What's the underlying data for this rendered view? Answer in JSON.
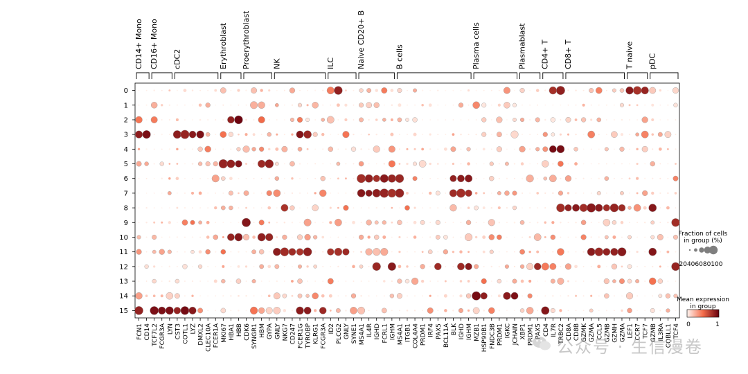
{
  "chart_data": {
    "type": "dotplot",
    "groups": [
      {
        "name": "CD14+ Mono",
        "genes": [
          "FCN1",
          "CD14"
        ]
      },
      {
        "name": "CD16+ Mono",
        "genes": [
          "TCF7L2",
          "FCGR3A",
          "LYN"
        ]
      },
      {
        "name": "cDC2",
        "genes": [
          "CST3",
          "COTL1",
          "LYZ",
          "DMXL2",
          "CLEC10A",
          "FCER1A"
        ]
      },
      {
        "name": "Erythroblast",
        "genes": [
          "MKI67",
          "HBA1",
          "HBB"
        ]
      },
      {
        "name": "Proerythroblast",
        "genes": [
          "CDK6",
          "SYNGR1",
          "HBM",
          "GYPA"
        ]
      },
      {
        "name": "NK",
        "genes": [
          "GNLY",
          "NKG7",
          "CD247",
          "FCER1G",
          "TYROBP",
          "KLRG1",
          "FCGR3A"
        ]
      },
      {
        "name": "ILC",
        "genes": [
          "ID2",
          "PLCG2",
          "GNLY",
          "SYNE1"
        ]
      },
      {
        "name": "Naive CD20+ B",
        "genes": [
          "MS4A1",
          "IL4R",
          "IGHD",
          "FCRL1",
          "IGHM"
        ]
      },
      {
        "name": "B cells",
        "genes": [
          "MS4A1",
          "ITGB1",
          "COL4A4",
          "PRDM1",
          "IRF4",
          "PAX5",
          "BCL11A",
          "BLK",
          "IGHD",
          "IGHM"
        ]
      },
      {
        "name": "Plasma cells",
        "genes": [
          "MZB1",
          "HSP90B1",
          "FNDC3B",
          "PRDM1",
          "IGKC",
          "JCHAIN"
        ]
      },
      {
        "name": "Plasmablast",
        "genes": [
          "XBP1",
          "PRDM1",
          "PAX5"
        ]
      },
      {
        "name": "CD4+ T",
        "genes": [
          "CD4",
          "IL7R",
          "TRBC2"
        ]
      },
      {
        "name": "CD8+ T",
        "genes": [
          "CD8A",
          "CD8B",
          "GZMK",
          "GZMA",
          "CCL5",
          "GZMB",
          "GZMH",
          "GZMA"
        ]
      },
      {
        "name": "T naive",
        "genes": [
          "LEF1",
          "CCR7",
          "TCF7"
        ]
      },
      {
        "name": "pDC",
        "genes": [
          "GZMB",
          "IL3RA",
          "COBLL1",
          "TCF4"
        ]
      }
    ],
    "rows": [
      "0",
      "1",
      "2",
      "3",
      "4",
      "5",
      "6",
      "7",
      "8",
      "9",
      "10",
      "11",
      "12",
      "13",
      "14",
      "15"
    ],
    "highlights": [
      {
        "row": 0,
        "genes": [
          "IL7R",
          "TRBC2",
          "LEF1",
          "CCR7",
          "TCF7",
          "PLCG2"
        ],
        "level": 0.9
      },
      {
        "row": 2,
        "genes": [
          "HBA1",
          "HBB"
        ],
        "level": 1.0
      },
      {
        "row": 2,
        "genes": [
          "HBM"
        ],
        "level": 0.6
      },
      {
        "row": 3,
        "genes": [
          "FCN1",
          "CD14",
          "CST3",
          "COTL1",
          "LYZ",
          "DMXL2",
          "FCER1G",
          "TYROBP"
        ],
        "level": 0.95
      },
      {
        "row": 4,
        "genes": [
          "IL7R",
          "TRBC2"
        ],
        "level": 0.95
      },
      {
        "row": 5,
        "genes": [
          "MKI67",
          "HBA1",
          "HBB",
          "HBM",
          "GYPA"
        ],
        "level": 0.95
      },
      {
        "row": 6,
        "genes": [
          "MS4A1",
          "IL4R",
          "IGHD",
          "FCRL1",
          "IGHM",
          "BLK",
          "IGHM"
        ],
        "level": 0.9
      },
      {
        "row": 7,
        "genes": [
          "MS4A1",
          "IL4R",
          "IGHD",
          "FCRL1",
          "IGHM",
          "BLK",
          "IGHM"
        ],
        "level": 0.9
      },
      {
        "row": 8,
        "genes": [
          "NKG7",
          "TRBC2",
          "CD8A",
          "CD8B",
          "GZMK",
          "GZMA",
          "CCL5",
          "GZMB",
          "GZMH"
        ],
        "level": 0.9
      },
      {
        "row": 9,
        "genes": [
          "CDK6",
          "TCF4"
        ],
        "level": 0.9
      },
      {
        "row": 10,
        "genes": [
          "HBA1",
          "HBB",
          "HBM",
          "GYPA"
        ],
        "level": 0.9
      },
      {
        "row": 11,
        "genes": [
          "GNLY",
          "NKG7",
          "CD247",
          "FCER1G",
          "TYROBP",
          "ID2",
          "PLCG2",
          "GNLY",
          "CCL5",
          "GZMB",
          "GZMH",
          "GZMA",
          "GZMB"
        ],
        "level": 0.9
      },
      {
        "row": 12,
        "genes": [
          "IGHM",
          "PAX5",
          "TCF4",
          "IGHD"
        ],
        "level": 0.9
      },
      {
        "row": 14,
        "genes": [
          "MZB1",
          "HSP90B1",
          "IGKC",
          "JCHAIN"
        ],
        "level": 0.95
      },
      {
        "row": 15,
        "genes": [
          "FCN1",
          "TCF7L2",
          "FCGR3A",
          "LYN",
          "CST3",
          "COTL1",
          "LYZ",
          "FCER1G",
          "TYROBP",
          "FCGR3A",
          "CD4"
        ],
        "level": 0.95
      }
    ],
    "legend_size": {
      "title": [
        "Fraction of cells",
        "in group (%)"
      ],
      "ticks": [
        "20",
        "40",
        "60",
        "80",
        "100"
      ]
    },
    "legend_color": {
      "title": [
        "Mean expression",
        "in group"
      ],
      "min": "0",
      "max": "1",
      "colormap": "Reds"
    },
    "colors": {
      "low": "#fff5f0",
      "mid": "#f46d4b",
      "high": "#67000d"
    }
  },
  "watermark": {
    "text": "公众号 · 生信漫卷",
    "icon": "wechat-icon"
  }
}
